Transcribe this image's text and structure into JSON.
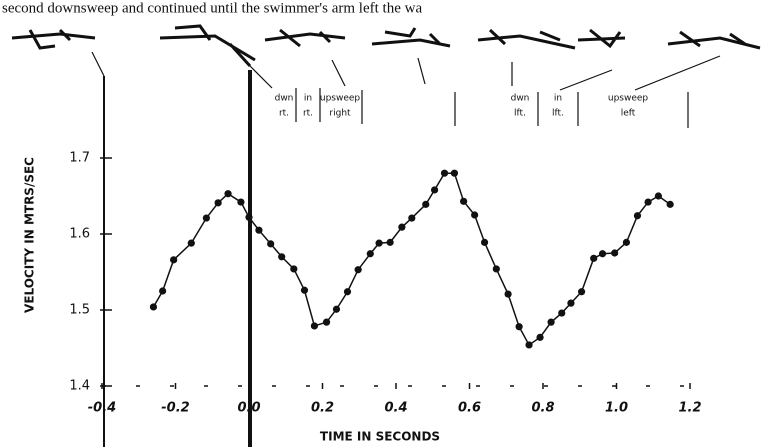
{
  "chart_data": {
    "type": "line",
    "caption": "second downsweep and continued until the swimmer's arm left the wa",
    "phases": [
      [
        "dwn",
        "rt."
      ],
      [
        "in",
        "rt."
      ],
      [
        "upsweep",
        "right"
      ],
      [
        "dwn",
        "lft."
      ],
      [
        "in",
        "lft."
      ],
      [
        "upsweep",
        "left"
      ]
    ],
    "xlabel": "TIME IN SECONDS",
    "ylabel": "VELOCITY IN MTRS/SEC",
    "x": [
      -0.26,
      -0.235,
      -0.205,
      -0.157,
      -0.116,
      -0.084,
      -0.057,
      -0.022,
      0.0,
      0.027,
      0.059,
      0.089,
      0.122,
      0.151,
      0.178,
      0.211,
      0.238,
      0.268,
      0.297,
      0.33,
      0.354,
      0.384,
      0.416,
      0.443,
      0.481,
      0.505,
      0.532,
      0.559,
      0.584,
      0.614,
      0.641,
      0.673,
      0.705,
      0.735,
      0.762,
      0.792,
      0.822,
      0.851,
      0.876,
      0.905,
      0.938,
      0.962,
      0.995,
      1.027,
      1.057,
      1.086,
      1.114,
      1.146
    ],
    "values": [
      1.504,
      1.525,
      1.566,
      1.588,
      1.621,
      1.641,
      1.653,
      1.642,
      1.622,
      1.605,
      1.587,
      1.57,
      1.554,
      1.526,
      1.479,
      1.484,
      1.501,
      1.524,
      1.553,
      1.574,
      1.588,
      1.589,
      1.609,
      1.621,
      1.639,
      1.658,
      1.68,
      1.68,
      1.643,
      1.625,
      1.589,
      1.554,
      1.521,
      1.478,
      1.454,
      1.464,
      1.484,
      1.496,
      1.509,
      1.524,
      1.568,
      1.574,
      1.575,
      1.589,
      1.624,
      1.642,
      1.65,
      1.639
    ],
    "color": "#111111",
    "xlim": [
      -0.4,
      1.2
    ],
    "ylim": [
      1.4,
      1.7
    ],
    "xticks": [
      -0.4,
      -0.2,
      {
        "value": 0,
        "label": "0.0"
      },
      0.2,
      0.4,
      0.6,
      0.8,
      {
        "value": 1,
        "label": "1.0"
      },
      1.2
    ],
    "yticks": [
      1.4,
      1.5,
      1.6,
      1.7
    ]
  }
}
